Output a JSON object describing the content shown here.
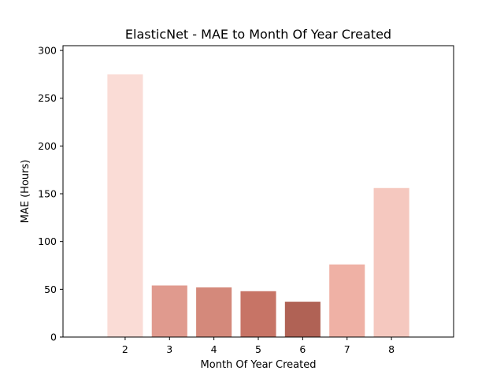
{
  "chart_data": {
    "type": "bar",
    "title": "ElasticNet - MAE to Month Of Year Created",
    "xlabel": "Month Of Year Created",
    "ylabel": "MAE (Hours)",
    "categories": [
      "2",
      "3",
      "4",
      "5",
      "6",
      "7",
      "8"
    ],
    "values": [
      275,
      54,
      52,
      48,
      37,
      76,
      156
    ],
    "bar_colors": [
      "#fadcd6",
      "#e09a8e",
      "#d4897b",
      "#c77466",
      "#b06255",
      "#efb1a5",
      "#f5c8bf"
    ],
    "ylim": [
      0,
      300
    ],
    "yticks": [
      0,
      50,
      100,
      150,
      200,
      250,
      300
    ],
    "grid": false,
    "legend": "none"
  }
}
